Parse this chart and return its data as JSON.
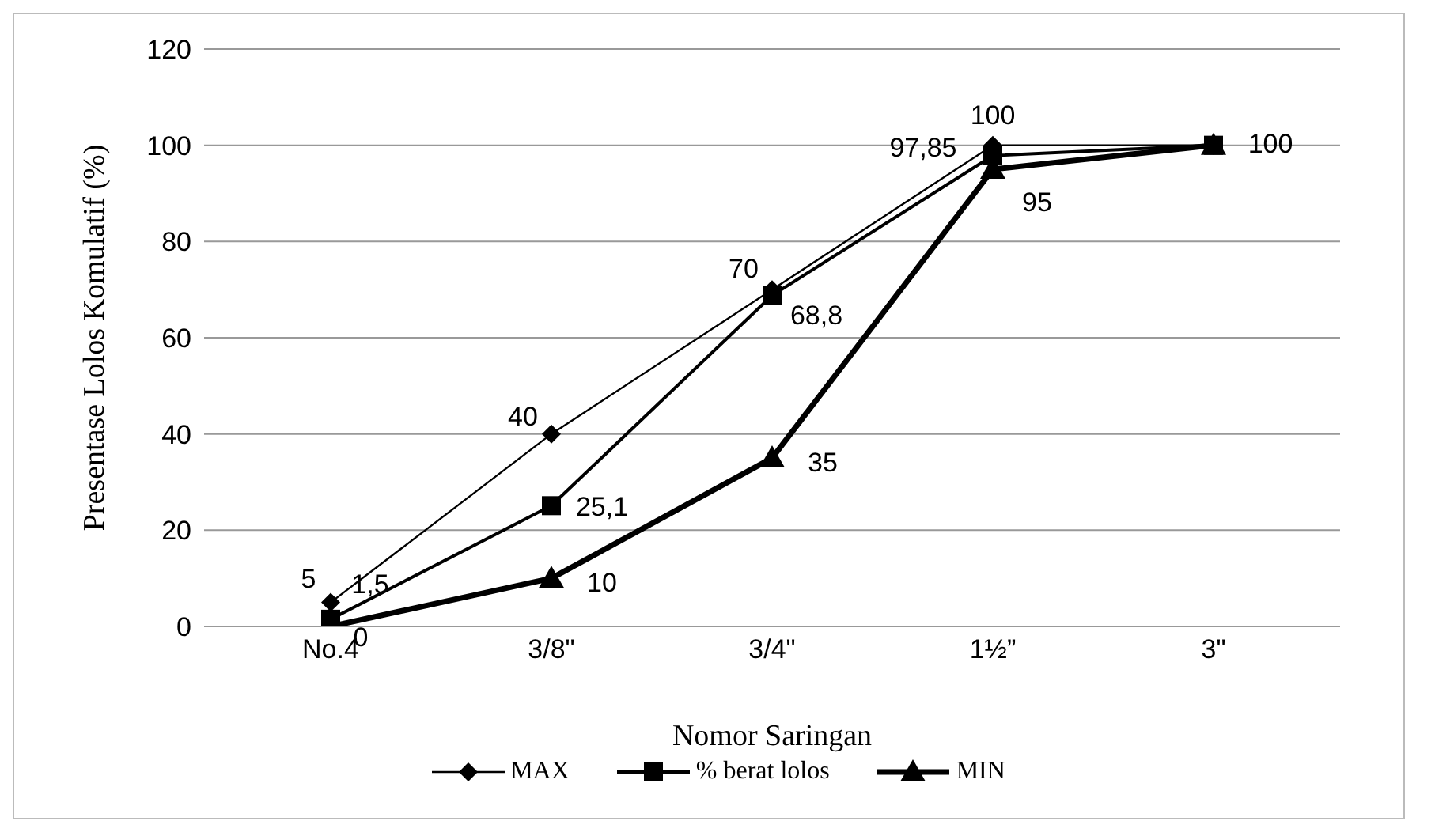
{
  "chart_data": {
    "type": "line",
    "xlabel": "Nomor Saringan",
    "ylabel": "Presentase Lolos Komulatif (%)",
    "categories": [
      "No.4",
      "3/8\"",
      "3/4\"",
      "1½”",
      "3\""
    ],
    "ylim": [
      0,
      120
    ],
    "yticks": [
      0,
      20,
      40,
      60,
      80,
      100,
      120
    ],
    "grid": "y",
    "legend": "bottom",
    "series": [
      {
        "name": "MAX",
        "color": "#000000",
        "marker": "diamond",
        "values": [
          5,
          40,
          70,
          100,
          100
        ],
        "value_labels": [
          "5",
          "40",
          "70",
          "100",
          null
        ]
      },
      {
        "name": "% berat lolos",
        "color": "#000000",
        "marker": "square",
        "values": [
          1.5,
          25.1,
          68.8,
          97.85,
          100
        ],
        "value_labels": [
          "1,5",
          "25,1",
          "68,8",
          "97,85",
          null
        ]
      },
      {
        "name": "MIN",
        "color": "#000000",
        "marker": "triangle",
        "values": [
          0,
          10,
          35,
          95,
          100
        ],
        "value_labels": [
          "0",
          "10",
          "35",
          "95",
          "100"
        ]
      }
    ]
  }
}
